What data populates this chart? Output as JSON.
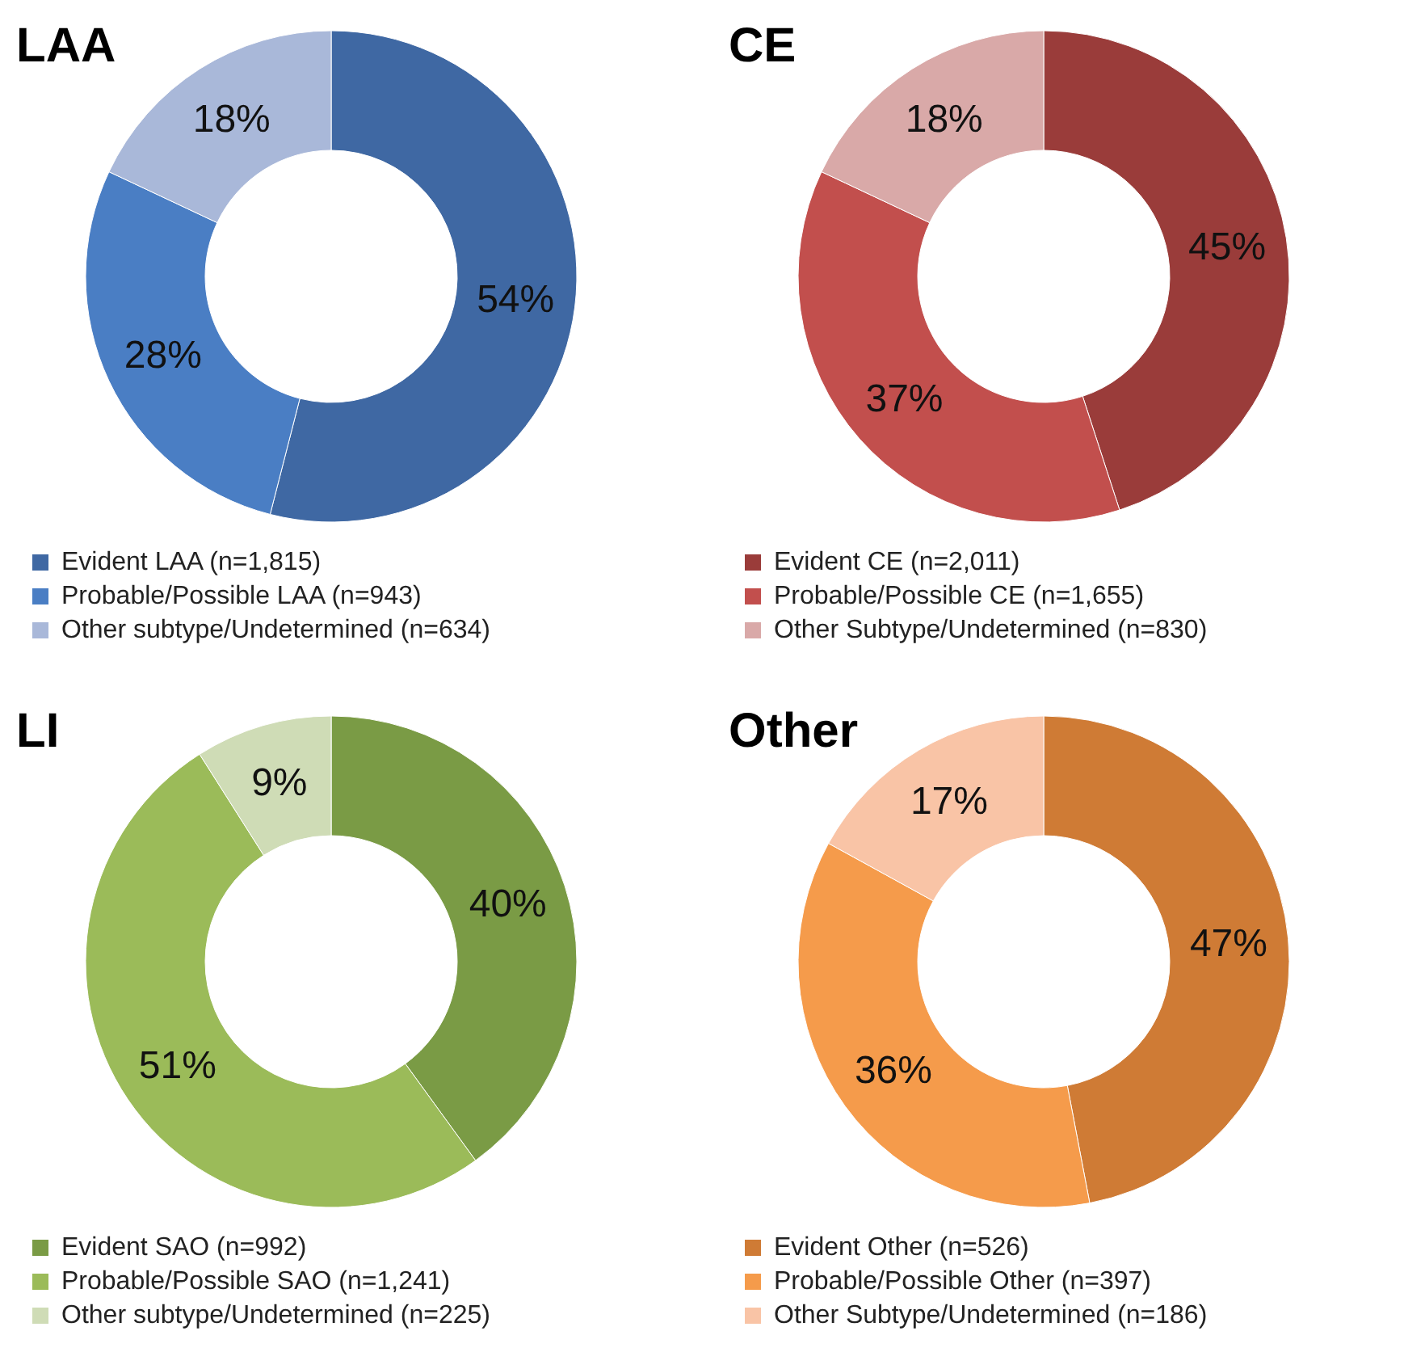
{
  "chart_data": [
    {
      "type": "donut",
      "title": "LAA",
      "categories": [
        "Evident LAA (n=1,815)",
        "Probable/Possible LAA (n=943)",
        "Other subtype/Undetermined (n=634)"
      ],
      "values": [
        54,
        28,
        18
      ],
      "value_labels": [
        "54%",
        "28%",
        "18%"
      ],
      "colors": [
        "#3f68a3",
        "#4a7ec4",
        "#a9b8d9"
      ],
      "legend": "bottom"
    },
    {
      "type": "donut",
      "title": "CE",
      "categories": [
        "Evident CE (n=2,011)",
        "Probable/Possible CE (n=1,655)",
        "Other Subtype/Undetermined (n=830)"
      ],
      "values": [
        45,
        37,
        18
      ],
      "value_labels": [
        "45%",
        "37%",
        "18%"
      ],
      "colors": [
        "#9a3c3a",
        "#c24f4d",
        "#d9a9a8"
      ],
      "legend": "bottom"
    },
    {
      "type": "donut",
      "title": "LI",
      "categories": [
        "Evident SAO (n=992)",
        "Probable/Possible SAO (n=1,241)",
        "Other subtype/Undetermined (n=225)"
      ],
      "values": [
        40,
        51,
        9
      ],
      "value_labels": [
        "40%",
        "51%",
        "9%"
      ],
      "colors": [
        "#7a9b45",
        "#9bbb59",
        "#cfdcb6"
      ],
      "legend": "bottom"
    },
    {
      "type": "donut",
      "title": "Other",
      "categories": [
        "Evident Other  (n=526)",
        "Probable/Possible Other (n=397)",
        "Other Subtype/Undetermined (n=186)"
      ],
      "values": [
        47,
        36,
        17
      ],
      "value_labels": [
        "47%",
        "36%",
        "17%"
      ],
      "colors": [
        "#cf7b35",
        "#f59b4b",
        "#f9c4a6"
      ],
      "legend": "bottom"
    }
  ]
}
